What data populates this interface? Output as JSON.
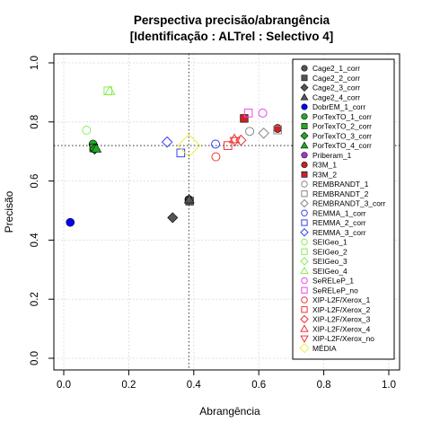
{
  "chart_data": {
    "type": "scatter",
    "title": "Perspectiva precisão/abrangência",
    "subtitle": "[Identificação : ALTrel : Selectivo 4]",
    "xlabel": "Abrangência",
    "ylabel": "Precisão",
    "xlim": [
      0,
      1
    ],
    "ylim": [
      0,
      1
    ],
    "xticks": [
      "0.0",
      "0.2",
      "0.4",
      "0.6",
      "0.8",
      "1.0"
    ],
    "yticks": [
      "0.0",
      "0.2",
      "0.4",
      "0.6",
      "0.8",
      "1.0"
    ],
    "grid": true,
    "legend_position": "right",
    "reference_lines": {
      "x": 0.385,
      "y": 0.72
    },
    "series": [
      {
        "name": "Cage2_1_corr",
        "shape": "circle",
        "fill": true,
        "color": "#555555",
        "points": [
          [
            0.385,
            0.537
          ]
        ]
      },
      {
        "name": "Cage2_2_corr",
        "shape": "square",
        "fill": true,
        "color": "#555555",
        "points": [
          [
            0.387,
            0.532
          ]
        ]
      },
      {
        "name": "Cage2_3_corr",
        "shape": "diamond",
        "fill": true,
        "color": "#555555",
        "points": [
          [
            0.335,
            0.476
          ]
        ]
      },
      {
        "name": "Cage2_4_corr",
        "shape": "triangle",
        "fill": true,
        "color": "#555555",
        "points": [
          [
            0.386,
            0.538
          ]
        ]
      },
      {
        "name": "DobrEM_1_corr",
        "shape": "circle",
        "fill": true,
        "color": "#0000ff",
        "points": [
          [
            0.02,
            0.46
          ]
        ]
      },
      {
        "name": "PorTexTO_1_corr",
        "shape": "circle",
        "fill": true,
        "color": "#22aa22",
        "points": [
          [
            0.09,
            0.725
          ]
        ]
      },
      {
        "name": "PorTexTO_2_corr",
        "shape": "square",
        "fill": true,
        "color": "#22aa22",
        "points": [
          [
            0.092,
            0.712
          ]
        ]
      },
      {
        "name": "PorTexTO_3_corr",
        "shape": "diamond",
        "fill": true,
        "color": "#22aa22",
        "points": [
          [
            0.095,
            0.708
          ]
        ]
      },
      {
        "name": "PorTexTO_4_corr",
        "shape": "triangle",
        "fill": true,
        "color": "#22aa22",
        "points": [
          [
            0.1,
            0.71
          ]
        ]
      },
      {
        "name": "Priberam_1",
        "shape": "circle",
        "fill": true,
        "color": "#aa33cc",
        "points": []
      },
      {
        "name": "R3M_1",
        "shape": "circle",
        "fill": true,
        "color": "#cc2222",
        "points": [
          [
            0.658,
            0.778
          ]
        ]
      },
      {
        "name": "R3M_2",
        "shape": "square",
        "fill": true,
        "color": "#cc2222",
        "points": [
          [
            0.555,
            0.812
          ]
        ]
      },
      {
        "name": "REMBRANDT_1",
        "shape": "circle",
        "fill": false,
        "color": "#888888",
        "points": [
          [
            0.572,
            0.768
          ]
        ]
      },
      {
        "name": "REMBRANDT_2",
        "shape": "square",
        "fill": false,
        "color": "#888888",
        "points": [
          [
            0.658,
            0.773
          ]
        ]
      },
      {
        "name": "REMBRANDT_3_corr",
        "shape": "diamond",
        "fill": false,
        "color": "#888888",
        "points": [
          [
            0.615,
            0.762
          ]
        ]
      },
      {
        "name": "REMMA_1_corr",
        "shape": "circle",
        "fill": false,
        "color": "#3344ee",
        "points": [
          [
            0.467,
            0.725
          ]
        ]
      },
      {
        "name": "REMMA_2_corr",
        "shape": "square",
        "fill": false,
        "color": "#3344ee",
        "points": [
          [
            0.36,
            0.695
          ]
        ]
      },
      {
        "name": "REMMA_3_corr",
        "shape": "diamond",
        "fill": false,
        "color": "#3344ee",
        "points": [
          [
            0.318,
            0.732
          ]
        ]
      },
      {
        "name": "SEIGeo_1",
        "shape": "circle",
        "fill": false,
        "color": "#88ee55",
        "points": [
          [
            0.07,
            0.772
          ]
        ]
      },
      {
        "name": "SEIGeo_2",
        "shape": "square",
        "fill": false,
        "color": "#88ee55",
        "points": [
          [
            0.136,
            0.905
          ]
        ]
      },
      {
        "name": "SEIGeo_3",
        "shape": "diamond",
        "fill": false,
        "color": "#88ee55",
        "points": []
      },
      {
        "name": "SEIGeo_4",
        "shape": "triangle",
        "fill": false,
        "color": "#88ee55",
        "points": [
          [
            0.142,
            0.905
          ]
        ]
      },
      {
        "name": "SeRELeP_1",
        "shape": "circle",
        "fill": false,
        "color": "#ee44ee",
        "points": [
          [
            0.612,
            0.83
          ]
        ]
      },
      {
        "name": "SeRELeP_no",
        "shape": "square",
        "fill": false,
        "color": "#ee44ee",
        "points": [
          [
            0.568,
            0.83
          ]
        ]
      },
      {
        "name": "XIP-L2F/Xerox_1",
        "shape": "circle",
        "fill": false,
        "color": "#ee3333",
        "points": [
          [
            0.468,
            0.682
          ]
        ]
      },
      {
        "name": "XIP-L2F/Xerox_2",
        "shape": "square",
        "fill": false,
        "color": "#ee3333",
        "points": [
          [
            0.505,
            0.72
          ]
        ]
      },
      {
        "name": "XIP-L2F/Xerox_3",
        "shape": "diamond",
        "fill": false,
        "color": "#ee3333",
        "points": [
          [
            0.545,
            0.738
          ]
        ]
      },
      {
        "name": "XIP-L2F/Xerox_4",
        "shape": "triangle",
        "fill": false,
        "color": "#ee3333",
        "points": [
          [
            0.525,
            0.742
          ]
        ]
      },
      {
        "name": "XIP-L2F/Xerox_no",
        "shape": "triangle-down",
        "fill": false,
        "color": "#ee3333",
        "points": [
          [
            0.527,
            0.735
          ]
        ]
      },
      {
        "name": "MÉDIA",
        "shape": "diamond-large",
        "fill": false,
        "color": "#eeee44",
        "points": [
          [
            0.385,
            0.72
          ]
        ]
      }
    ]
  }
}
